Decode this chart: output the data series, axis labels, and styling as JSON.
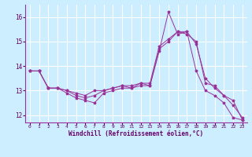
{
  "xlabel": "Windchill (Refroidissement éolien,°C)",
  "bg_color": "#cceeff",
  "grid_color": "#ffffff",
  "line_color": "#993399",
  "marker": "*",
  "xlim": [
    -0.5,
    23.5
  ],
  "ylim": [
    11.7,
    16.5
  ],
  "yticks": [
    12,
    13,
    14,
    15,
    16
  ],
  "xticks": [
    0,
    1,
    2,
    3,
    4,
    5,
    6,
    7,
    8,
    9,
    10,
    11,
    12,
    13,
    14,
    15,
    16,
    17,
    18,
    19,
    20,
    21,
    22,
    23
  ],
  "series": [
    [
      13.8,
      13.8,
      13.1,
      13.1,
      12.9,
      12.7,
      12.6,
      12.5,
      12.9,
      13.0,
      13.1,
      13.1,
      13.2,
      13.2,
      14.6,
      16.2,
      15.3,
      15.4,
      13.8,
      13.0,
      12.8,
      12.5,
      11.9,
      11.8
    ],
    [
      13.8,
      13.8,
      13.1,
      13.1,
      13.0,
      12.8,
      12.7,
      12.8,
      13.0,
      13.1,
      13.2,
      13.2,
      13.3,
      13.3,
      14.8,
      15.1,
      15.4,
      15.4,
      14.9,
      13.5,
      13.1,
      12.8,
      12.4,
      11.9
    ],
    [
      13.8,
      13.8,
      13.1,
      13.1,
      13.0,
      12.9,
      12.8,
      13.0,
      13.0,
      13.1,
      13.2,
      13.1,
      13.3,
      13.2,
      14.7,
      15.0,
      15.4,
      15.3,
      15.0,
      13.3,
      13.2,
      12.8,
      12.6,
      11.8
    ]
  ]
}
